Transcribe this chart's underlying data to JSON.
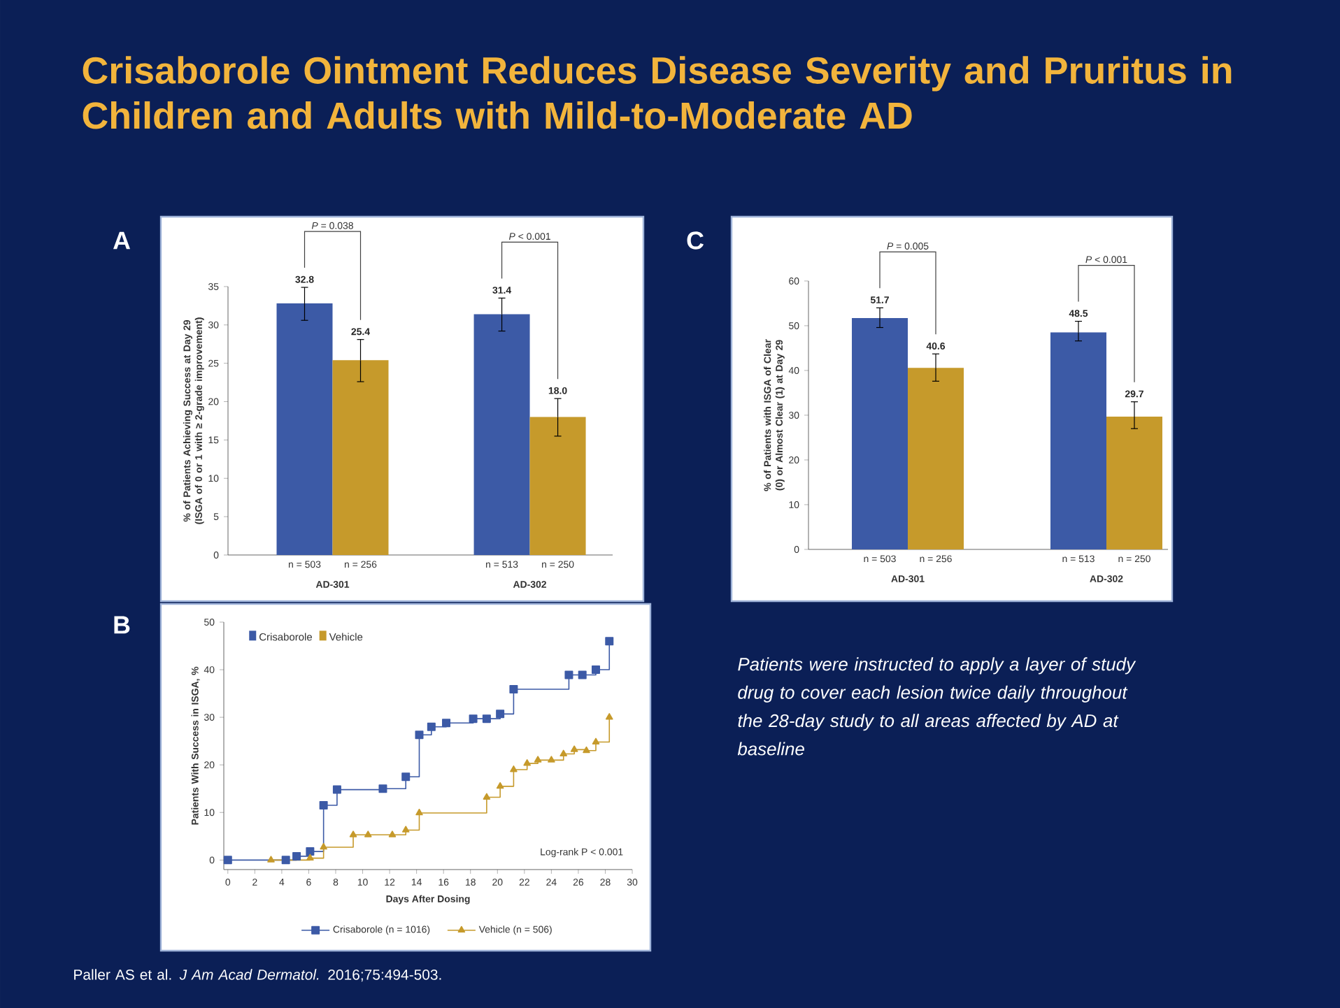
{
  "chart_data": [
    {
      "type": "bar",
      "title": "A",
      "ylabel": "% of Patients Achieving Success at Day 29 (ISGA of 0 or 1 with ≥ 2-grade improvement)",
      "categories": [
        "AD-301",
        "AD-302"
      ],
      "series": [
        {
          "color": "#3c5aa6",
          "values": [
            32.8,
            31.4
          ],
          "errors": [
            [
              30.6,
              34.9
            ],
            [
              29.2,
              33.5
            ]
          ],
          "value_labels": [
            "32.8",
            "31.4"
          ]
        },
        {
          "color": "#c69a2b",
          "values": [
            25.4,
            18.0
          ],
          "errors": [
            [
              22.6,
              28.1
            ],
            [
              15.5,
              20.4
            ]
          ],
          "value_labels": [
            "25.4",
            "18.0"
          ]
        }
      ],
      "ylim": [
        0,
        35
      ],
      "yticks": [
        0,
        5,
        10,
        15,
        20,
        25,
        30,
        35
      ],
      "annotations": [
        "*P* = 0.038",
        "*P* < 0.001",
        "n = 503",
        "n = 256",
        "n = 513",
        "n = 250"
      ]
    },
    {
      "type": "step",
      "title": "B",
      "xlabel": "Days After Dosing",
      "ylabel": "Patients With Success in ISGA, %",
      "series": [
        {
          "name": "Crisaborole (n = 1016)",
          "color": "#3c5aa6",
          "marker": "square",
          "x": [
            0,
            4.3,
            5.1,
            6.1,
            7.1,
            8.1,
            11.5,
            13.2,
            14.2,
            15.1,
            16.2,
            18.2,
            19.2,
            20.2,
            21.2,
            25.3,
            26.3,
            27.3,
            28.3
          ],
          "values": [
            0,
            0,
            0.8,
            1.8,
            11.5,
            14.8,
            15,
            17.5,
            26.3,
            28,
            28.8,
            29.7,
            29.7,
            30.7,
            35.9,
            38.9,
            38.9,
            40,
            46
          ]
        },
        {
          "name": "Vehicle (n = 506)",
          "color": "#c69a2b",
          "marker": "triangle",
          "x": [
            3.2,
            6.1,
            7.1,
            9.3,
            10.4,
            12.2,
            13.2,
            14.2,
            19.2,
            20.2,
            21.2,
            22.2,
            23.0,
            24.0,
            24.9,
            25.7,
            26.6,
            27.3,
            28.3
          ],
          "values": [
            0,
            0.4,
            2.7,
            5.3,
            5.3,
            5.3,
            6.3,
            9.9,
            13.2,
            15.5,
            19,
            20.3,
            21,
            21,
            22.3,
            23.2,
            23,
            24.8,
            30
          ]
        }
      ],
      "xlim": [
        -0.3,
        30
      ],
      "xticks": [
        0,
        2,
        4,
        6,
        8,
        10,
        12,
        14,
        16,
        18,
        20,
        22,
        24,
        26,
        28,
        30
      ],
      "ylim": [
        -2,
        50
      ],
      "yticks": [
        0,
        10,
        20,
        30,
        40,
        50
      ],
      "legend": "bottom",
      "annotations": [
        "Crisaborole",
        "Vehicle",
        "Log-rank P < 0.001"
      ]
    },
    {
      "type": "bar",
      "title": "C",
      "ylabel": "% of Patients with ISGA of Clear (0) or Almost Clear (1) at Day 29",
      "categories": [
        "AD-301",
        "AD-302"
      ],
      "series": [
        {
          "color": "#3c5aa6",
          "values": [
            51.7,
            48.5
          ],
          "errors": [
            [
              49.6,
              54.0
            ],
            [
              46.6,
              51.0
            ]
          ]
        },
        {
          "color": "#c69a2b",
          "values": [
            40.6,
            29.7
          ],
          "errors": [
            [
              37.6,
              43.7
            ],
            [
              27.0,
              33.0
            ]
          ]
        }
      ],
      "ylim": [
        0,
        60
      ],
      "yticks": [
        0,
        10,
        20,
        30,
        40,
        50,
        60
      ],
      "data_labels": true,
      "annotations": [
        "*P* = 0.005",
        "*P* < 0.001",
        "n = 503",
        "n = 256",
        "n = 513",
        "n = 250"
      ]
    },
    {
      "type": "other",
      "title": "Crisaborole Ointment Reduces Disease Severity and Pruritus in Children and Adults with Mild-to-Moderate AD",
      "annotations": [
        "Patients were instructed to apply a layer of study drug to cover each lesion twice daily throughout the 28-day study to all areas affected by AD at baseline",
        "Paller AS et al. *J Am Acad Dermatol.* 2016;75:494-503."
      ]
    }
  ]
}
